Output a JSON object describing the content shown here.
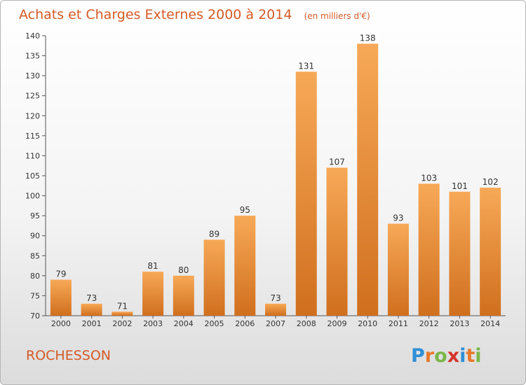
{
  "header": {
    "title": "Achats et Charges Externes 2000 à 2014",
    "unit_note": "(en milliers d'€)"
  },
  "commune_name": "ROCHESSON",
  "brand": {
    "letters": [
      "P",
      "r",
      "o",
      "x",
      "i",
      "t",
      "i"
    ],
    "colors": [
      "#2e8fd6",
      "#e8782a",
      "#7ab648",
      "#d4342c",
      "#2e8fd6",
      "#e8782a",
      "#7ab648"
    ]
  },
  "colors": {
    "bar_light": "#f7a957",
    "bar_dark": "#d06f1e",
    "title": "#d45a26",
    "axis": "#555555"
  },
  "chart_data": {
    "type": "bar",
    "title": "Achats et Charges Externes 2000 à 2014",
    "subtitle": "(en milliers d'€)",
    "categories": [
      "2000",
      "2001",
      "2002",
      "2003",
      "2004",
      "2005",
      "2006",
      "2007",
      "2008",
      "2009",
      "2010",
      "2011",
      "2012",
      "2013",
      "2014"
    ],
    "values": [
      79,
      73,
      71,
      81,
      80,
      89,
      95,
      73,
      131,
      107,
      138,
      93,
      103,
      101,
      102
    ],
    "ylim": [
      70,
      140
    ],
    "yticks": [
      70,
      75,
      80,
      85,
      90,
      95,
      100,
      105,
      110,
      115,
      120,
      125,
      130,
      135,
      140
    ],
    "grid": false,
    "xlabel": "",
    "ylabel": ""
  }
}
